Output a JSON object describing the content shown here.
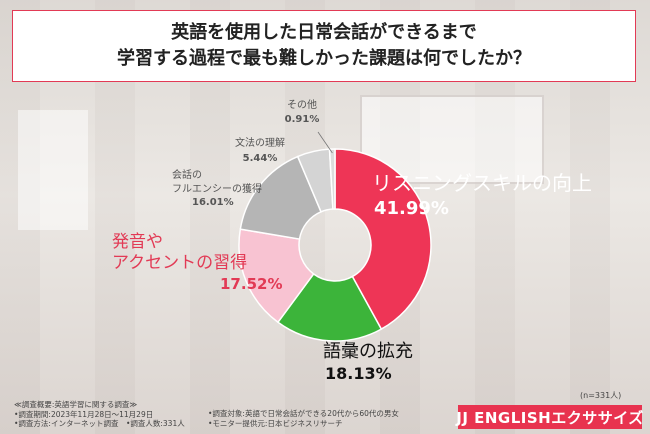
{
  "title": {
    "line1": "英語を使用した日常会話ができるまで",
    "line2": "学習する過程で最も難しかった課題は何でしたか？"
  },
  "chart_data": {
    "type": "pie",
    "style": "donut",
    "title": "英語を使用した日常会話ができるまで学習する過程で最も難しかった課題は何でしたか？",
    "categories": [
      "リスニングスキルの向上",
      "語彙の拡充",
      "発音やアクセントの習得",
      "会話のフルエンシーの獲得",
      "文法の理解",
      "その他"
    ],
    "values": [
      41.99,
      18.13,
      17.52,
      16.01,
      5.44,
      0.91
    ],
    "unit": "%",
    "display_values": [
      "41.99%",
      "18.13%",
      "17.52%",
      "16.01%",
      "5.44%",
      "0.91%"
    ],
    "colors": [
      "#ee3556",
      "#3cb43a",
      "#f8c3d2",
      "#b5b5b5",
      "#d4d4d4",
      "#dcdcdc"
    ],
    "label_lines": [
      [
        "リスニングスキルの向上"
      ],
      [
        "語彙の拡充"
      ],
      [
        "発音や",
        "アクセントの習得"
      ],
      [
        "会話の",
        "フルエンシーの獲得"
      ],
      [
        "文法の理解"
      ],
      [
        "その他"
      ]
    ],
    "label_colors": [
      "#ffffff",
      "#111111",
      "#e23a55",
      "#555555",
      "#555555",
      "#555555"
    ],
    "value_colors": [
      "#ffffff",
      "#111111",
      "#e23a55",
      "#555555",
      "#555555",
      "#555555"
    ],
    "legend": "none"
  },
  "footer": {
    "survey_title": "≪調査概要:英語学習に関する調査≫",
    "period": "•調査期間:2023年11月28日〜11月29日",
    "method": "•調査方法:インターネット調査　•調査人数:331人",
    "target": "•調査対象:英語で日常会話ができる20代から60代の男女",
    "provider": "•モニター提供元:日本ビジネスリサーチ",
    "sample_size": "(n=331人)"
  },
  "brand": {
    "logo_text": "JJ ENGLISHエクササイズ"
  }
}
